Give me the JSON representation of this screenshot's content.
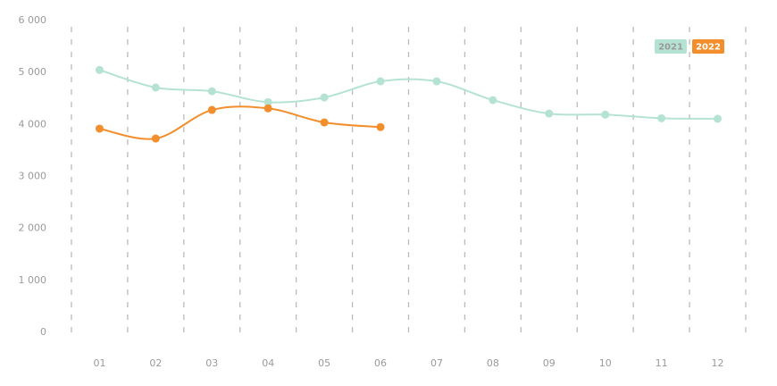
{
  "chart_data": {
    "type": "line",
    "categories": [
      "01",
      "02",
      "03",
      "04",
      "05",
      "06",
      "07",
      "08",
      "09",
      "10",
      "11",
      "12"
    ],
    "series": [
      {
        "name": "2021",
        "color": "#b5e3d3",
        "values": [
          5050,
          4710,
          4640,
          4430,
          4520,
          4830,
          4830,
          4470,
          4210,
          4190,
          4120,
          4110
        ]
      },
      {
        "name": "2022",
        "color": "#f28e2b",
        "values": [
          3920,
          3730,
          4280,
          4310,
          4040,
          3950,
          null,
          null,
          null,
          null,
          null,
          null
        ]
      }
    ],
    "ylim": [
      0,
      6000
    ],
    "yticks": [
      0,
      {
        "value": 1000,
        "label": "1 000"
      },
      {
        "value": 2000,
        "label": "2 000"
      },
      {
        "value": 3000,
        "label": "3 000"
      },
      {
        "value": 4000,
        "label": "4 000"
      },
      {
        "value": 5000,
        "label": "5 000"
      },
      {
        "value": 6000,
        "label": "6 000"
      }
    ],
    "grid": true,
    "legend": "top-right"
  }
}
